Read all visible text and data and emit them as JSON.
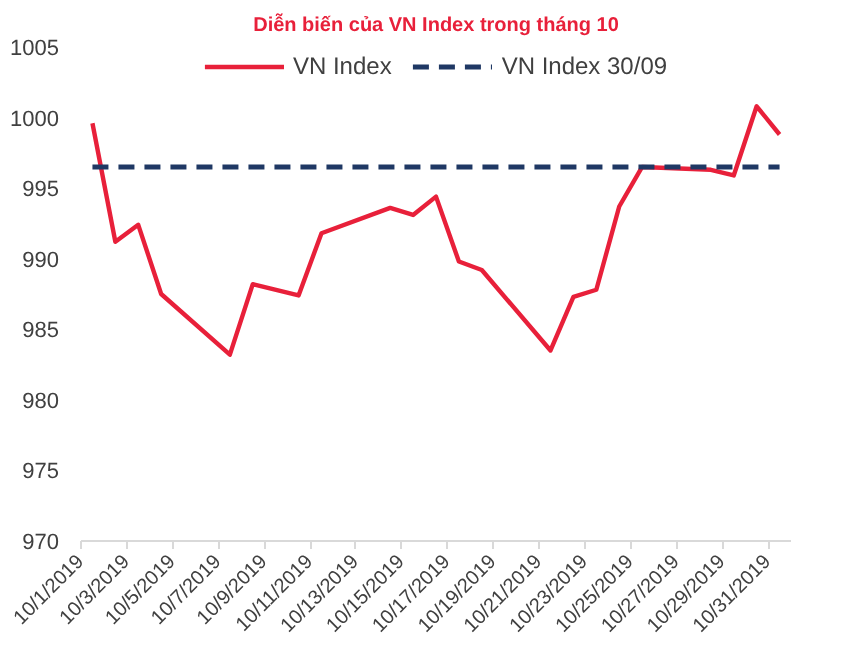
{
  "chart_data": {
    "type": "line",
    "title": "Diễn biến của VN Index trong tháng 10",
    "xlim": [
      "2019-10-01",
      "2019-11-01"
    ],
    "xticks": [
      {
        "value": "2019-10-01",
        "label": "10/1/2019"
      },
      {
        "value": "2019-10-03",
        "label": "10/3/2019"
      },
      {
        "value": "2019-10-05",
        "label": "10/5/2019"
      },
      {
        "value": "2019-10-07",
        "label": "10/7/2019"
      },
      {
        "value": "2019-10-09",
        "label": "10/9/2019"
      },
      {
        "value": "2019-10-11",
        "label": "10/11/2019"
      },
      {
        "value": "2019-10-13",
        "label": "10/13/2019"
      },
      {
        "value": "2019-10-15",
        "label": "10/15/2019"
      },
      {
        "value": "2019-10-17",
        "label": "10/17/2019"
      },
      {
        "value": "2019-10-19",
        "label": "10/19/2019"
      },
      {
        "value": "2019-10-21",
        "label": "10/21/2019"
      },
      {
        "value": "2019-10-23",
        "label": "10/23/2019"
      },
      {
        "value": "2019-10-25",
        "label": "10/25/2019"
      },
      {
        "value": "2019-10-27",
        "label": "10/27/2019"
      },
      {
        "value": "2019-10-29",
        "label": "10/29/2019"
      },
      {
        "value": "2019-10-31",
        "label": "10/31/2019"
      }
    ],
    "ylim": [
      970,
      1005
    ],
    "yticks": [
      970,
      975,
      980,
      985,
      990,
      995,
      1000,
      1005
    ],
    "grid": false,
    "legend": "top",
    "marker": "none",
    "series": [
      {
        "name": "VN Index",
        "color": "#e8203a",
        "line_style": "solid",
        "x": [
          "2019-10-01T12:00",
          "2019-10-02T12:00",
          "2019-10-03T12:00",
          "2019-10-04T12:00",
          "2019-10-07T12:00",
          "2019-10-08T12:00",
          "2019-10-10T12:00",
          "2019-10-11T12:00",
          "2019-10-14T12:00",
          "2019-10-15T12:00",
          "2019-10-16T12:00",
          "2019-10-17T12:00",
          "2019-10-18T12:00",
          "2019-10-21T12:00",
          "2019-10-22T12:00",
          "2019-10-23T12:00",
          "2019-10-24T12:00",
          "2019-10-25T12:00",
          "2019-10-28T12:00",
          "2019-10-29T12:00",
          "2019-10-30T12:00",
          "2019-10-31T12:00"
        ],
        "values": [
          999.6,
          991.2,
          992.4,
          987.5,
          983.2,
          988.2,
          987.4,
          991.8,
          993.6,
          993.1,
          994.4,
          989.8,
          989.2,
          983.5,
          987.3,
          987.8,
          993.7,
          996.5,
          996.3,
          995.9,
          1000.8,
          998.8
        ]
      },
      {
        "name": "VN Index 30/09",
        "color": "#1f3864",
        "line_style": "dashed",
        "x": [
          "2019-10-01T12:00",
          "2019-10-31T12:00"
        ],
        "values": [
          996.5,
          996.5
        ]
      }
    ]
  }
}
